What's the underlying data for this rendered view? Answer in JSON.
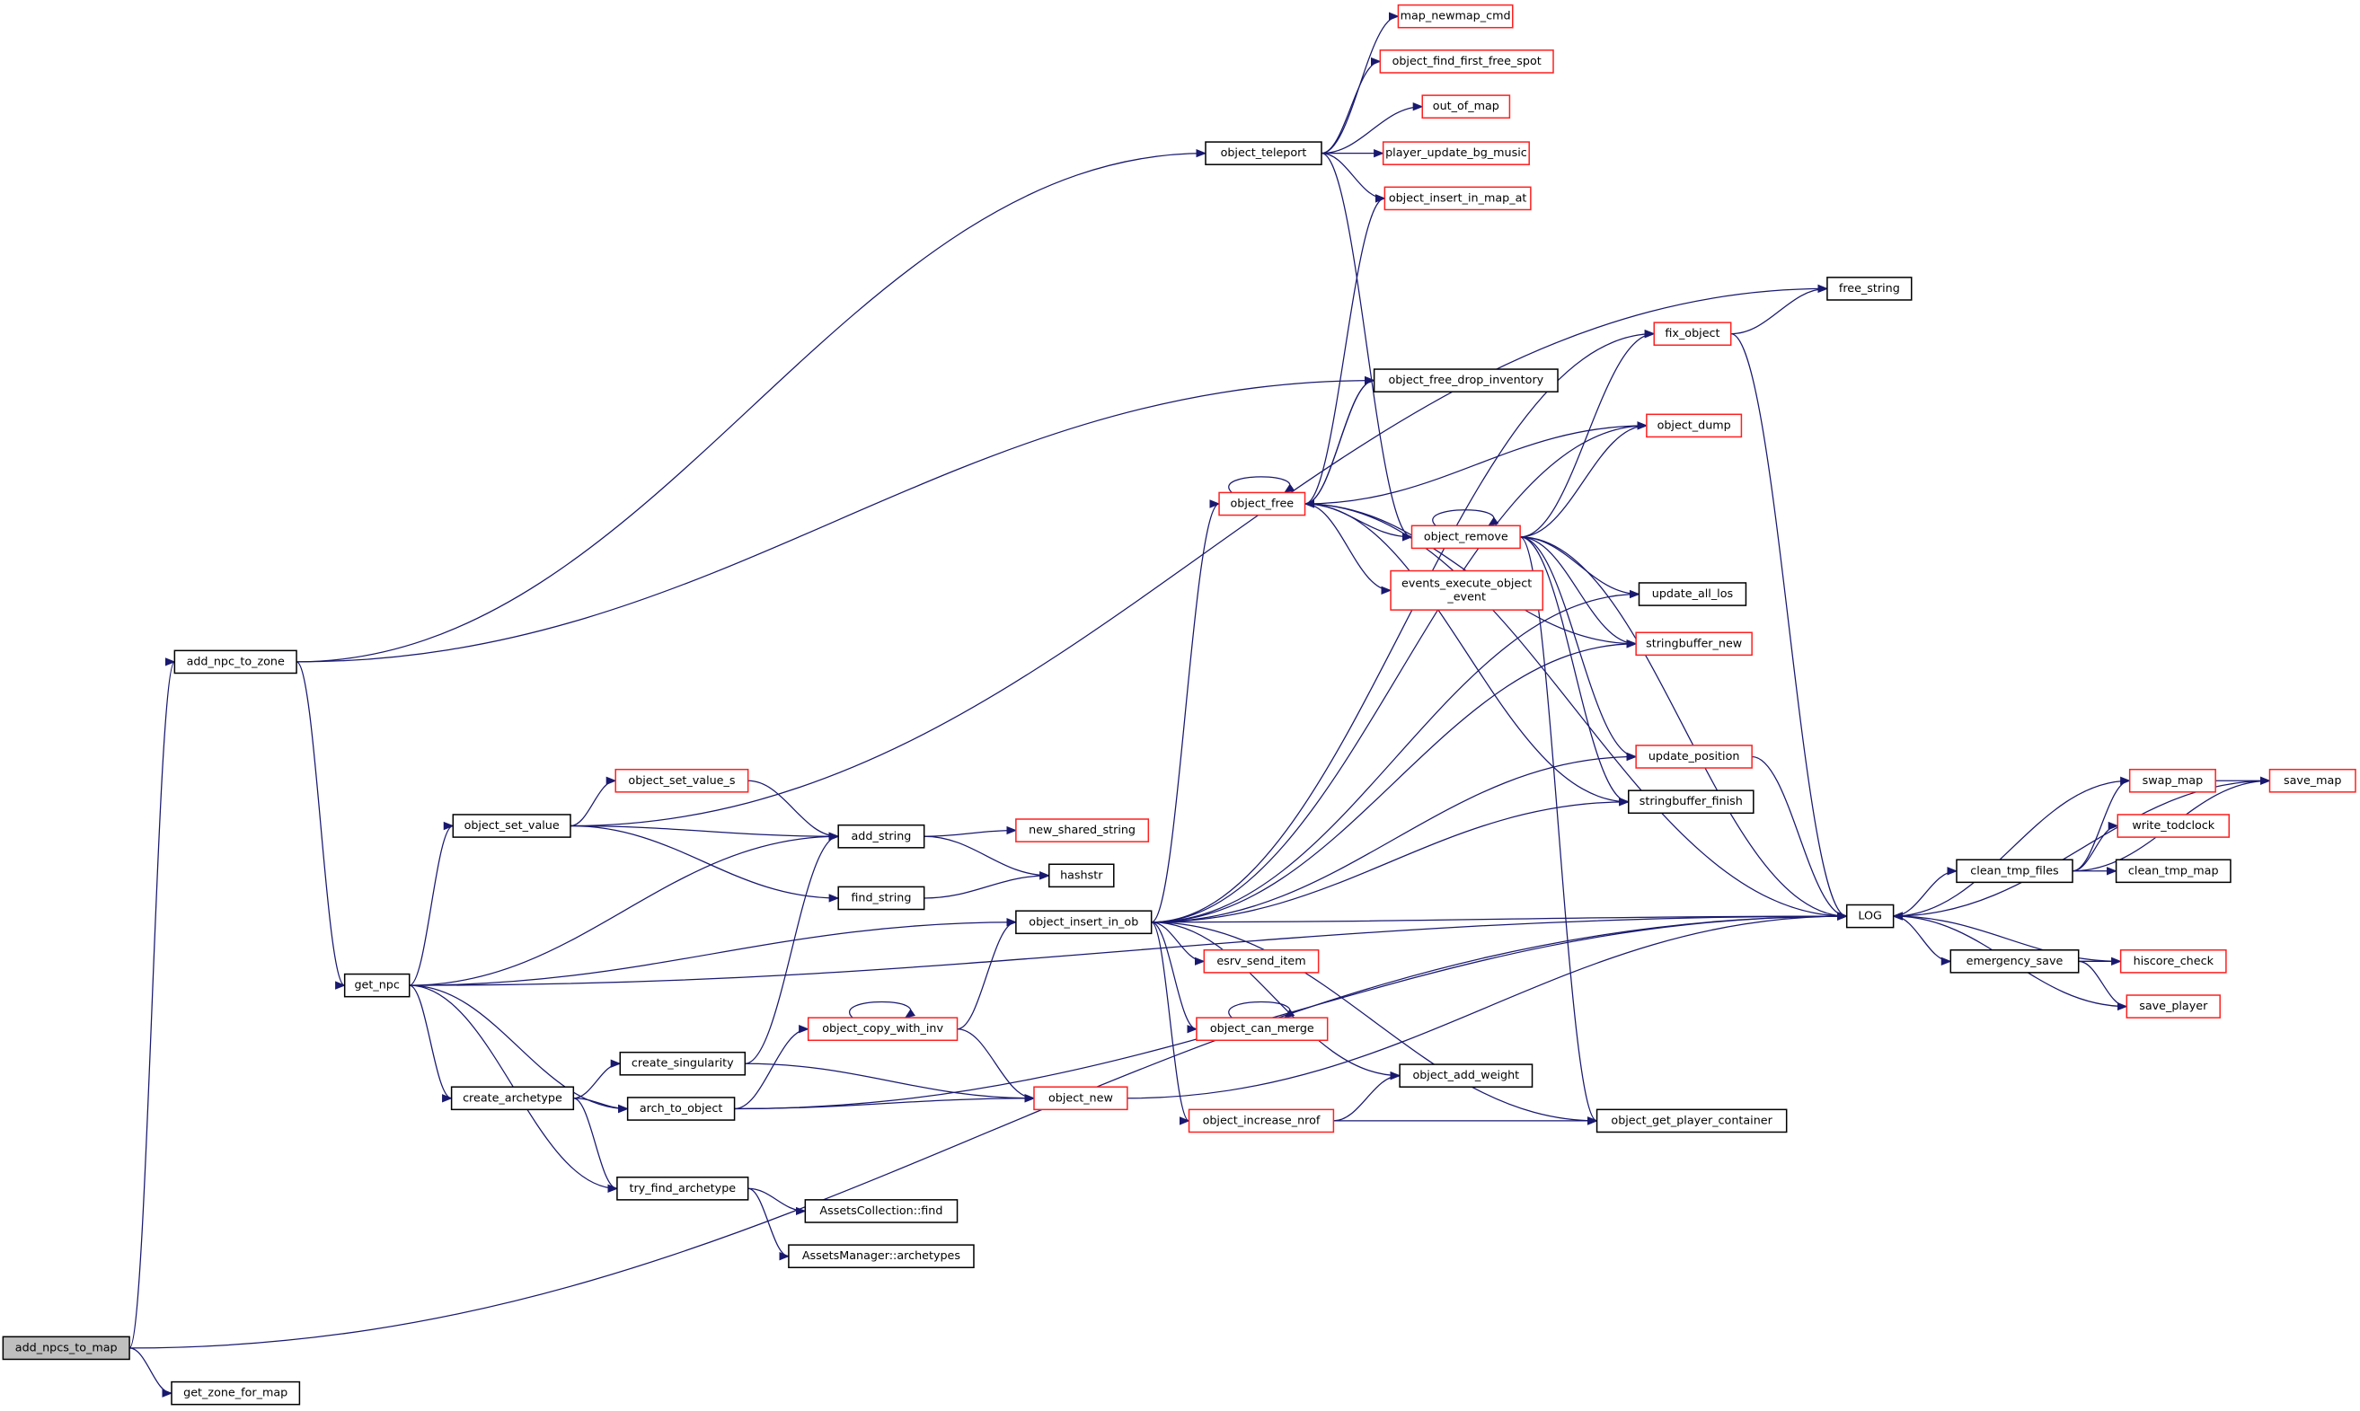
{
  "colors": {
    "edge": "#191970",
    "missing_border": "#ff2020",
    "normal_border": "#000000",
    "root_fill": "#bfbfbf"
  },
  "nodes": [
    {
      "id": "add_npcs_to_map",
      "label": "add_npcs_to_map",
      "style": "root"
    },
    {
      "id": "get_zone_for_map",
      "label": "get_zone_for_map",
      "style": "black"
    },
    {
      "id": "add_npc_to_zone",
      "label": "add_npc_to_zone",
      "style": "black"
    },
    {
      "id": "get_npc",
      "label": "get_npc",
      "style": "black"
    },
    {
      "id": "object_set_value",
      "label": "object_set_value",
      "style": "black"
    },
    {
      "id": "object_set_value_s",
      "label": "object_set_value_s",
      "style": "red"
    },
    {
      "id": "add_string",
      "label": "add_string",
      "style": "black"
    },
    {
      "id": "new_shared_string",
      "label": "new_shared_string",
      "style": "red"
    },
    {
      "id": "hashstr",
      "label": "hashstr",
      "style": "black"
    },
    {
      "id": "find_string",
      "label": "find_string",
      "style": "black"
    },
    {
      "id": "object_insert_in_ob",
      "label": "object_insert_in_ob",
      "style": "black"
    },
    {
      "id": "create_singularity",
      "label": "create_singularity",
      "style": "black"
    },
    {
      "id": "create_archetype",
      "label": "create_archetype",
      "style": "black"
    },
    {
      "id": "arch_to_object",
      "label": "arch_to_object",
      "style": "black"
    },
    {
      "id": "object_copy_with_inv",
      "label": "object_copy_with_inv",
      "style": "red"
    },
    {
      "id": "object_new",
      "label": "object_new",
      "style": "red"
    },
    {
      "id": "try_find_archetype",
      "label": "try_find_archetype",
      "style": "black"
    },
    {
      "id": "assets_collection_find",
      "label": "AssetsCollection::find",
      "style": "black"
    },
    {
      "id": "assets_manager_archetypes",
      "label": "AssetsManager::archetypes",
      "style": "black"
    },
    {
      "id": "object_teleport",
      "label": "object_teleport",
      "style": "black"
    },
    {
      "id": "map_newmap_cmd",
      "label": "map_newmap_cmd",
      "style": "red"
    },
    {
      "id": "object_find_first_free_spot",
      "label": "object_find_first_free_spot",
      "style": "red"
    },
    {
      "id": "out_of_map",
      "label": "out_of_map",
      "style": "red"
    },
    {
      "id": "player_update_bg_music",
      "label": "player_update_bg_music",
      "style": "red"
    },
    {
      "id": "object_insert_in_map_at",
      "label": "object_insert_in_map_at",
      "style": "red"
    },
    {
      "id": "free_string",
      "label": "free_string",
      "style": "black"
    },
    {
      "id": "fix_object",
      "label": "fix_object",
      "style": "red"
    },
    {
      "id": "object_free_drop_inventory",
      "label": "object_free_drop_inventory",
      "style": "black"
    },
    {
      "id": "object_dump",
      "label": "object_dump",
      "style": "red"
    },
    {
      "id": "object_free",
      "label": "object_free",
      "style": "red"
    },
    {
      "id": "object_remove",
      "label": "object_remove",
      "style": "red"
    },
    {
      "id": "events_execute_object_event",
      "label": "events_execute_object\n_event",
      "style": "red"
    },
    {
      "id": "update_all_los",
      "label": "update_all_los",
      "style": "black"
    },
    {
      "id": "stringbuffer_new",
      "label": "stringbuffer_new",
      "style": "red"
    },
    {
      "id": "update_position",
      "label": "update_position",
      "style": "red"
    },
    {
      "id": "stringbuffer_finish",
      "label": "stringbuffer_finish",
      "style": "black"
    },
    {
      "id": "esrv_send_item",
      "label": "esrv_send_item",
      "style": "red"
    },
    {
      "id": "object_can_merge",
      "label": "object_can_merge",
      "style": "red"
    },
    {
      "id": "object_add_weight",
      "label": "object_add_weight",
      "style": "black"
    },
    {
      "id": "object_increase_nrof",
      "label": "object_increase_nrof",
      "style": "red"
    },
    {
      "id": "object_get_player_container",
      "label": "object_get_player_container",
      "style": "black"
    },
    {
      "id": "LOG",
      "label": "LOG",
      "style": "black"
    },
    {
      "id": "clean_tmp_files",
      "label": "clean_tmp_files",
      "style": "black"
    },
    {
      "id": "emergency_save",
      "label": "emergency_save",
      "style": "black"
    },
    {
      "id": "swap_map",
      "label": "swap_map",
      "style": "red"
    },
    {
      "id": "save_map",
      "label": "save_map",
      "style": "red"
    },
    {
      "id": "write_todclock",
      "label": "write_todclock",
      "style": "red"
    },
    {
      "id": "clean_tmp_map",
      "label": "clean_tmp_map",
      "style": "black"
    },
    {
      "id": "hiscore_check",
      "label": "hiscore_check",
      "style": "red"
    },
    {
      "id": "save_player",
      "label": "save_player",
      "style": "red"
    }
  ],
  "edges": [
    [
      "add_npcs_to_map",
      "add_npc_to_zone"
    ],
    [
      "add_npcs_to_map",
      "get_zone_for_map"
    ],
    [
      "add_npcs_to_map",
      "LOG"
    ],
    [
      "add_npc_to_zone",
      "object_teleport"
    ],
    [
      "add_npc_to_zone",
      "object_free_drop_inventory"
    ],
    [
      "add_npc_to_zone",
      "get_npc"
    ],
    [
      "get_npc",
      "object_set_value"
    ],
    [
      "get_npc",
      "add_string"
    ],
    [
      "get_npc",
      "object_insert_in_ob"
    ],
    [
      "get_npc",
      "create_archetype"
    ],
    [
      "get_npc",
      "arch_to_object"
    ],
    [
      "get_npc",
      "try_find_archetype"
    ],
    [
      "get_npc",
      "LOG"
    ],
    [
      "object_set_value",
      "object_set_value_s"
    ],
    [
      "object_set_value",
      "add_string"
    ],
    [
      "object_set_value",
      "find_string"
    ],
    [
      "object_set_value",
      "free_string"
    ],
    [
      "object_set_value_s",
      "add_string"
    ],
    [
      "add_string",
      "new_shared_string"
    ],
    [
      "add_string",
      "hashstr"
    ],
    [
      "find_string",
      "hashstr"
    ],
    [
      "create_singularity",
      "add_string"
    ],
    [
      "create_singularity",
      "object_new"
    ],
    [
      "create_archetype",
      "create_singularity"
    ],
    [
      "create_archetype",
      "arch_to_object"
    ],
    [
      "create_archetype",
      "try_find_archetype"
    ],
    [
      "arch_to_object",
      "object_copy_with_inv"
    ],
    [
      "arch_to_object",
      "object_new"
    ],
    [
      "arch_to_object",
      "LOG"
    ],
    [
      "try_find_archetype",
      "assets_collection_find"
    ],
    [
      "try_find_archetype",
      "assets_manager_archetypes"
    ],
    [
      "object_copy_with_inv",
      "object_copy_with_inv"
    ],
    [
      "object_copy_with_inv",
      "object_insert_in_ob"
    ],
    [
      "object_copy_with_inv",
      "object_new"
    ],
    [
      "object_new",
      "LOG"
    ],
    [
      "object_insert_in_ob",
      "object_free"
    ],
    [
      "object_insert_in_ob",
      "fix_object"
    ],
    [
      "object_insert_in_ob",
      "object_dump"
    ],
    [
      "object_insert_in_ob",
      "update_all_los"
    ],
    [
      "object_insert_in_ob",
      "stringbuffer_new"
    ],
    [
      "object_insert_in_ob",
      "update_position"
    ],
    [
      "object_insert_in_ob",
      "stringbuffer_finish"
    ],
    [
      "object_insert_in_ob",
      "LOG"
    ],
    [
      "object_insert_in_ob",
      "esrv_send_item"
    ],
    [
      "object_insert_in_ob",
      "object_can_merge"
    ],
    [
      "object_insert_in_ob",
      "object_add_weight"
    ],
    [
      "object_insert_in_ob",
      "object_increase_nrof"
    ],
    [
      "object_insert_in_ob",
      "object_get_player_container"
    ],
    [
      "object_teleport",
      "map_newmap_cmd"
    ],
    [
      "object_teleport",
      "object_find_first_free_spot"
    ],
    [
      "object_teleport",
      "out_of_map"
    ],
    [
      "object_teleport",
      "player_update_bg_music"
    ],
    [
      "object_teleport",
      "object_insert_in_map_at"
    ],
    [
      "object_teleport",
      "object_remove"
    ],
    [
      "object_free",
      "object_free"
    ],
    [
      "object_free",
      "object_insert_in_map_at"
    ],
    [
      "object_free",
      "object_free_drop_inventory"
    ],
    [
      "object_free",
      "object_dump"
    ],
    [
      "object_free",
      "object_remove"
    ],
    [
      "object_free",
      "events_execute_object_event"
    ],
    [
      "object_free",
      "stringbuffer_new"
    ],
    [
      "object_free",
      "stringbuffer_finish"
    ],
    [
      "object_free",
      "LOG"
    ],
    [
      "object_free_drop_inventory",
      "object_free"
    ],
    [
      "object_remove",
      "object_remove"
    ],
    [
      "object_remove",
      "fix_object"
    ],
    [
      "object_remove",
      "object_dump"
    ],
    [
      "object_remove",
      "LOG"
    ],
    [
      "object_remove",
      "update_all_los"
    ],
    [
      "object_remove",
      "stringbuffer_new"
    ],
    [
      "object_remove",
      "update_position"
    ],
    [
      "object_remove",
      "stringbuffer_finish"
    ],
    [
      "object_remove",
      "object_get_player_container"
    ],
    [
      "fix_object",
      "free_string"
    ],
    [
      "fix_object",
      "LOG"
    ],
    [
      "update_position",
      "LOG"
    ],
    [
      "object_can_merge",
      "object_can_merge"
    ],
    [
      "object_increase_nrof",
      "object_add_weight"
    ],
    [
      "object_increase_nrof",
      "object_get_player_container"
    ],
    [
      "LOG",
      "clean_tmp_files"
    ],
    [
      "LOG",
      "emergency_save"
    ],
    [
      "clean_tmp_files",
      "swap_map"
    ],
    [
      "clean_tmp_files",
      "write_todclock"
    ],
    [
      "clean_tmp_files",
      "clean_tmp_map"
    ],
    [
      "clean_tmp_files",
      "save_map"
    ],
    [
      "emergency_save",
      "hiscore_check"
    ],
    [
      "emergency_save",
      "save_player"
    ],
    [
      "swap_map",
      "save_map"
    ],
    [
      "swap_map",
      "LOG"
    ],
    [
      "save_map",
      "LOG"
    ],
    [
      "hiscore_check",
      "LOG"
    ],
    [
      "save_player",
      "LOG"
    ]
  ]
}
